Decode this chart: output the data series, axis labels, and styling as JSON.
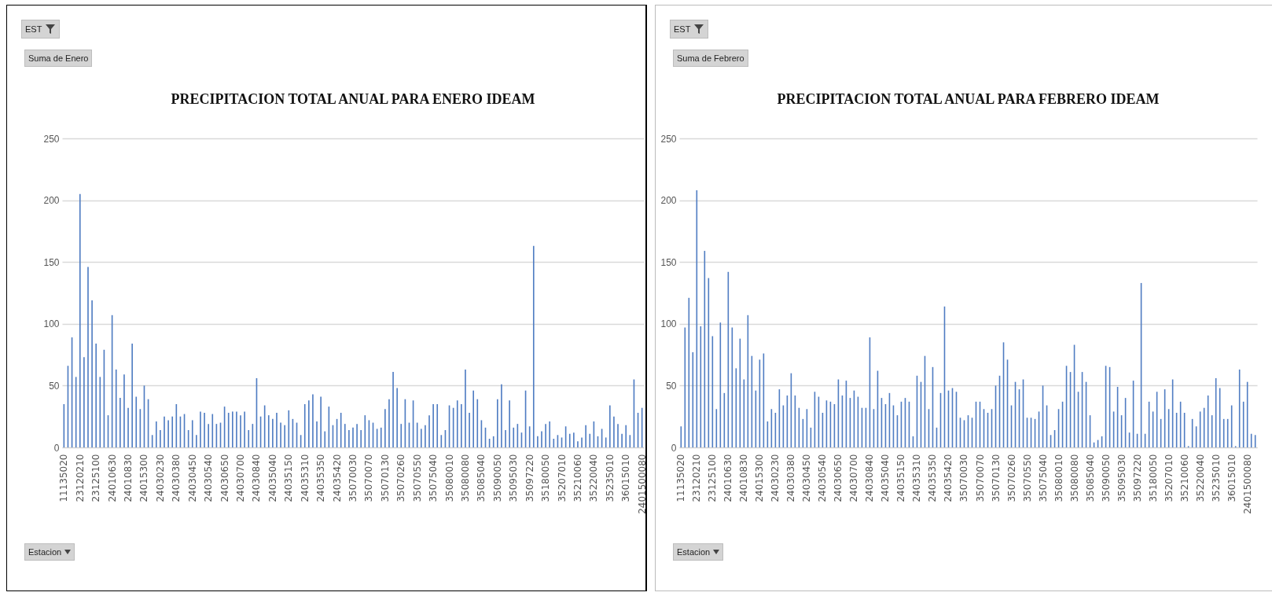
{
  "chart_data": [
    {
      "type": "bar",
      "title": "PRECIPITACION TOTAL ANUAL PARA ENERO IDEAM",
      "color": "#4f7cc2",
      "ylim": [
        0,
        250
      ],
      "yticks": [
        0,
        50,
        100,
        150,
        200,
        250
      ],
      "grid": "y",
      "annotations": [
        "EST",
        "Suma de Enero",
        "Estacion"
      ],
      "categories": [
        "11135020",
        null,
        null,
        null,
        "23120210",
        null,
        null,
        null,
        "23125100",
        null,
        null,
        null,
        "24010630",
        null,
        null,
        null,
        "24010830",
        null,
        null,
        null,
        "24015300",
        null,
        null,
        null,
        "24030230",
        null,
        null,
        null,
        "24030380",
        null,
        null,
        null,
        "24030450",
        null,
        null,
        null,
        "24030540",
        null,
        null,
        null,
        "24030650",
        null,
        null,
        null,
        "24030700",
        null,
        null,
        null,
        "24030840",
        null,
        null,
        null,
        "24035040",
        null,
        null,
        null,
        "24035150",
        null,
        null,
        null,
        "24035310",
        null,
        null,
        null,
        "24035350",
        null,
        null,
        null,
        "24035420",
        null,
        null,
        null,
        "35070030",
        null,
        null,
        null,
        "35070070",
        null,
        null,
        null,
        "35070130",
        null,
        null,
        null,
        "35070260",
        null,
        null,
        null,
        "35070550",
        null,
        null,
        null,
        "35075040",
        null,
        null,
        null,
        "35080010",
        null,
        null,
        null,
        "35080080",
        null,
        null,
        null,
        "35085040",
        null,
        null,
        null,
        "35090050",
        null,
        null,
        null,
        "35095030",
        null,
        null,
        null,
        "35097220",
        null,
        null,
        null,
        "35180050",
        null,
        null,
        null,
        "35207010",
        null,
        null,
        null,
        "35210060",
        null,
        null,
        null,
        "35220040",
        null,
        null,
        null,
        "35235010",
        null,
        null,
        null,
        "36015010",
        null,
        null,
        null,
        "2401500080"
      ],
      "values": [
        35,
        66,
        89,
        57,
        205,
        73,
        146,
        119,
        84,
        57,
        79,
        26,
        107,
        63,
        40,
        59,
        32,
        84,
        41,
        31,
        50,
        39,
        10,
        21,
        14,
        25,
        22,
        25,
        35,
        25,
        27,
        14,
        22,
        10,
        29,
        28,
        19,
        27,
        19,
        20,
        33,
        28,
        29,
        29,
        26,
        29,
        14,
        19,
        56,
        25,
        34,
        26,
        23,
        28,
        20,
        18,
        30,
        23,
        20,
        10,
        35,
        38,
        43,
        21,
        41,
        13,
        33,
        18,
        23,
        28,
        19,
        14,
        16,
        19,
        14,
        26,
        22,
        20,
        15,
        16,
        31,
        39,
        61,
        48,
        19,
        39,
        20,
        38,
        20,
        15,
        18,
        26,
        35,
        35,
        10,
        14,
        34,
        32,
        38,
        35,
        63,
        28,
        46,
        39,
        22,
        16,
        7,
        9,
        39,
        51,
        14,
        38,
        16,
        19,
        12,
        46,
        17,
        163,
        9,
        13,
        19,
        21,
        7,
        10,
        8,
        17,
        11,
        12,
        5,
        8,
        18,
        11,
        21,
        9,
        15,
        8,
        34,
        25,
        19,
        11,
        18,
        10,
        55,
        28,
        32
      ]
    },
    {
      "type": "bar",
      "title": "PRECIPITACION TOTAL ANUAL PARA FEBRERO IDEAM",
      "color": "#4f7cc2",
      "ylim": [
        0,
        250
      ],
      "yticks": [
        0,
        50,
        100,
        150,
        200,
        250
      ],
      "grid": "y",
      "annotations": [
        "EST",
        "Suma de Febrero",
        "Estacion"
      ],
      "categories": [
        "11135020",
        null,
        null,
        null,
        "23120210",
        null,
        null,
        null,
        "23125100",
        null,
        null,
        null,
        "24010630",
        null,
        null,
        null,
        "24010830",
        null,
        null,
        null,
        "24015300",
        null,
        null,
        null,
        "24030230",
        null,
        null,
        null,
        "24030380",
        null,
        null,
        null,
        "24030450",
        null,
        null,
        null,
        "24030540",
        null,
        null,
        null,
        "24030650",
        null,
        null,
        null,
        "24030700",
        null,
        null,
        null,
        "24030840",
        null,
        null,
        null,
        "24035040",
        null,
        null,
        null,
        "24035150",
        null,
        null,
        null,
        "24035310",
        null,
        null,
        null,
        "24035350",
        null,
        null,
        null,
        "24035420",
        null,
        null,
        null,
        "35070030",
        null,
        null,
        null,
        "35070070",
        null,
        null,
        null,
        "35070130",
        null,
        null,
        null,
        "35070260",
        null,
        null,
        null,
        "35070550",
        null,
        null,
        null,
        "35075040",
        null,
        null,
        null,
        "35080010",
        null,
        null,
        null,
        "35080080",
        null,
        null,
        null,
        "35085040",
        null,
        null,
        null,
        "35090050",
        null,
        null,
        null,
        "35095030",
        null,
        null,
        null,
        "35097220",
        null,
        null,
        null,
        "35180050",
        null,
        null,
        null,
        "35207010",
        null,
        null,
        null,
        "35210060",
        null,
        null,
        null,
        "35220040",
        null,
        null,
        null,
        "35235010",
        null,
        null,
        null,
        "36015010",
        null,
        null,
        null,
        "2401500080",
        null,
        null
      ],
      "values": [
        17,
        97,
        121,
        77,
        208,
        98,
        159,
        137,
        90,
        31,
        101,
        44,
        142,
        97,
        64,
        88,
        55,
        107,
        74,
        46,
        71,
        76,
        21,
        31,
        28,
        47,
        34,
        42,
        60,
        42,
        32,
        23,
        31,
        16,
        45,
        41,
        28,
        38,
        37,
        35,
        55,
        42,
        54,
        40,
        46,
        41,
        32,
        32,
        89,
        31,
        62,
        40,
        35,
        44,
        34,
        26,
        37,
        40,
        37,
        9,
        58,
        53,
        74,
        31,
        65,
        16,
        44,
        114,
        46,
        48,
        45,
        24,
        22,
        26,
        24,
        37,
        37,
        31,
        28,
        31,
        50,
        58,
        85,
        71,
        34,
        53,
        47,
        55,
        24,
        24,
        23,
        29,
        50,
        34,
        10,
        14,
        31,
        37,
        66,
        61,
        83,
        45,
        61,
        53,
        26,
        4,
        6,
        9,
        66,
        65,
        29,
        49,
        26,
        40,
        12,
        54,
        11,
        133,
        11,
        37,
        29,
        45,
        23,
        47,
        31,
        55,
        28,
        37,
        28,
        1,
        23,
        17,
        29,
        32,
        42,
        26,
        56,
        48,
        23,
        23,
        34,
        1,
        63,
        37,
        53,
        11,
        10
      ]
    }
  ]
}
